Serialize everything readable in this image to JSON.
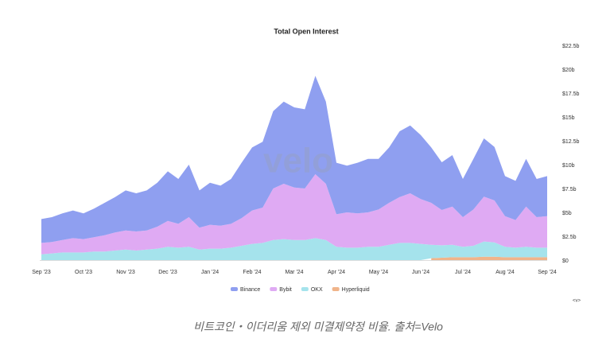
{
  "chart_data": {
    "type": "stacked-area",
    "title": "Total Open Interest",
    "watermark": "velo",
    "categories": [
      "Sep '23",
      null,
      null,
      null,
      "Oct '23",
      null,
      null,
      null,
      "Nov '23",
      null,
      null,
      null,
      "Dec '23",
      null,
      null,
      null,
      "Jan '24",
      null,
      null,
      null,
      "Feb '24",
      null,
      null,
      null,
      "Mar '24",
      null,
      null,
      null,
      "Apr '24",
      null,
      null,
      null,
      "May '24",
      null,
      null,
      null,
      "Jun '24",
      null,
      null,
      null,
      "Jul '24",
      null,
      null,
      null,
      "Aug '24",
      null,
      null,
      null,
      "Sep '24"
    ],
    "series": [
      {
        "name": "Binance",
        "color": "#8f9ff0",
        "values": [
          2.5,
          2.6,
          2.8,
          2.9,
          2.7,
          3.0,
          3.4,
          3.7,
          4.2,
          4.0,
          4.2,
          4.6,
          5.2,
          4.7,
          5.5,
          3.9,
          4.4,
          4.2,
          4.7,
          5.8,
          6.6,
          6.9,
          8.1,
          8.6,
          8.4,
          8.3,
          10.3,
          8.6,
          5.4,
          4.9,
          5.3,
          5.6,
          5.3,
          5.8,
          6.9,
          7.1,
          6.7,
          5.8,
          5.0,
          5.4,
          4.0,
          5.3,
          6.1,
          5.6,
          4.2,
          4.1,
          5.0,
          4.0,
          4.2
        ]
      },
      {
        "name": "Bybit",
        "color": "#dfaaf3",
        "values": [
          1.2,
          1.2,
          1.3,
          1.5,
          1.4,
          1.5,
          1.7,
          1.9,
          2.0,
          2.0,
          2.0,
          2.3,
          2.7,
          2.5,
          3.1,
          2.3,
          2.5,
          2.4,
          2.5,
          2.9,
          3.5,
          3.7,
          5.4,
          5.8,
          5.5,
          5.4,
          6.7,
          5.9,
          3.4,
          3.7,
          3.6,
          3.6,
          3.9,
          4.4,
          4.8,
          5.2,
          4.7,
          4.4,
          3.7,
          4.0,
          3.1,
          3.8,
          4.7,
          4.4,
          3.2,
          2.9,
          4.2,
          3.2,
          3.3
        ]
      },
      {
        "name": "OKX",
        "color": "#a5e3ec",
        "values": [
          0.6,
          0.7,
          0.8,
          0.8,
          0.8,
          0.9,
          0.9,
          1.0,
          1.1,
          1.0,
          1.1,
          1.2,
          1.4,
          1.3,
          1.4,
          1.1,
          1.2,
          1.2,
          1.3,
          1.5,
          1.7,
          1.8,
          2.1,
          2.2,
          2.1,
          2.1,
          2.3,
          2.1,
          1.4,
          1.3,
          1.3,
          1.4,
          1.4,
          1.6,
          1.8,
          1.8,
          1.7,
          1.4,
          1.3,
          1.3,
          1.1,
          1.2,
          1.6,
          1.5,
          1.1,
          1.0,
          1.1,
          1.0,
          1.0
        ]
      },
      {
        "name": "Hyperliquid",
        "color": "#f0b48a",
        "values": [
          null,
          null,
          null,
          null,
          null,
          null,
          null,
          null,
          null,
          null,
          null,
          null,
          null,
          null,
          null,
          null,
          null,
          null,
          null,
          null,
          null,
          null,
          null,
          null,
          null,
          null,
          null,
          null,
          null,
          null,
          null,
          null,
          null,
          null,
          null,
          null,
          null,
          0.2,
          0.25,
          0.3,
          0.3,
          0.3,
          0.35,
          0.35,
          0.3,
          0.3,
          0.3,
          0.3,
          0.3
        ]
      }
    ],
    "ylim": [
      0,
      22.5
    ],
    "yticks": [
      {
        "value": 0,
        "label": "$0"
      },
      {
        "value": 2.5,
        "label": "$2.5b"
      },
      {
        "value": 5,
        "label": "$5b"
      },
      {
        "value": 7.5,
        "label": "$7.5b"
      },
      {
        "value": 10,
        "label": "$10b"
      },
      {
        "value": 12.5,
        "label": "$12.5b"
      },
      {
        "value": 15,
        "label": "$15b"
      },
      {
        "value": 17.5,
        "label": "$17.5b"
      },
      {
        "value": 20,
        "label": "$20b"
      },
      {
        "value": 22.5,
        "label": "$22.5b"
      }
    ],
    "nav_label": "<v>",
    "caption": "비트코인・이더리움 제외 미결제약정 비율. 출처=Velo"
  }
}
